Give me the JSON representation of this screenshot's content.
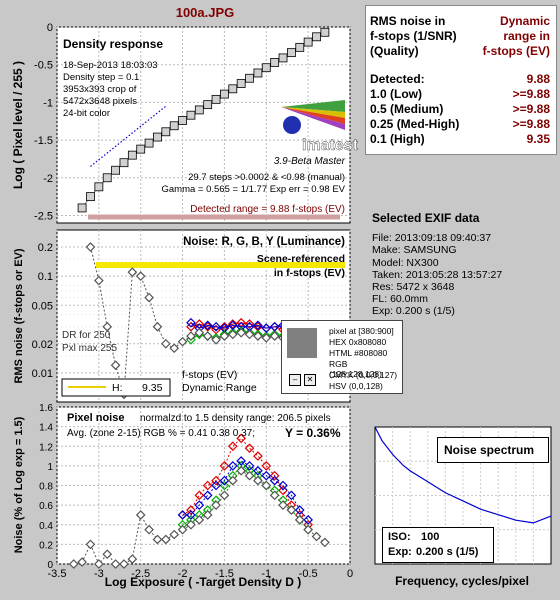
{
  "file_title": "100a.JPG",
  "density": {
    "title": "Density response",
    "info_lines": [
      "18-Sep-2013 18:03:03",
      "Density step = 0.1",
      "3953x393 crop of",
      "5472x3648 pixels",
      "24-bit color"
    ],
    "ylabel": "Log ( Pixel level / 255 )",
    "yticks": [
      "0",
      "-0.5",
      "-1",
      "-1.5",
      "-2",
      "-2.5"
    ],
    "logo": "imatest",
    "version": "3.9-Beta  Master",
    "stats_lines": [
      "29.7 steps >0.0002 & <0.98 (manual)",
      "Gamma = 0.565 = 1/1.77  Exp err = 0.98 EV"
    ],
    "detected_range": "Detected range = 9.88 f-stops (EV)"
  },
  "noise": {
    "title": "Noise: R, G, B, Y (Luminance)",
    "scene_label": "Scene-referenced",
    "scene_label2": "in f-stops (EV)",
    "ylabel": "RMS noise (f-stops or EV)",
    "yticks": [
      "0.2",
      "0.1",
      "0.05",
      "0.02",
      "0.01"
    ],
    "dr_labels": [
      "DR for 250",
      "Pxl max 255"
    ],
    "h_label": "H:",
    "h_value": "9.35",
    "dr_caption": [
      "f-stops (EV)",
      "Dynamic Range"
    ]
  },
  "pixel": {
    "title": "Pixel noise",
    "normalized": "normalzd to 1.5 density range: 206.5 pixels",
    "avg_label": "Avg. (zone 2-15) RGB % = 0.41  0.38  0.37;",
    "y_label": "Y = 0.36%",
    "ylabel": "Noise (% of Log exp = 1.5)",
    "yticks": [
      "1.6",
      "1.4",
      "1.2",
      "1",
      "0.8",
      "0.6",
      "0.4",
      "0.2",
      "0"
    ],
    "xticks": [
      "-3.5",
      "-3",
      "-2.5",
      "-2",
      "-1.5",
      "-1",
      "-0.5",
      "0"
    ],
    "xlabel": "Log Exposure ( -Target Density D )"
  },
  "spectrum": {
    "title": "Noise spectrum",
    "xlabel": "Frequency, cycles/pixel",
    "iso_label": "ISO:",
    "iso_value": "100",
    "exp_label": "Exp:",
    "exp_value": "0.200 s   (1/5)"
  },
  "rms_panel": {
    "header_left": [
      "RMS noise in",
      "f-stops (1/SNR)",
      "(Quality)"
    ],
    "header_right": [
      "Dynamic",
      "range in",
      "f-stops (EV)"
    ],
    "rows": [
      {
        "label": "Detected:",
        "value": "9.88"
      },
      {
        "label": "1.0  (Low)",
        "value": ">=9.88"
      },
      {
        "label": "0.5  (Medium)",
        "value": ">=9.88"
      },
      {
        "label": "0.25 (Med-High)",
        "value": ">=9.88"
      },
      {
        "label": "0.1  (High)",
        "value": "9.35"
      }
    ]
  },
  "exif": {
    "title": "Selected EXIF data",
    "lines": [
      "File:  2013:09:18 09:40:37",
      "Make:  SAMSUNG",
      "Model: NX300",
      "Taken:  2013:05:28 13:57:27",
      "Res:    5472 x 3648",
      "FL:  60.0mm",
      "Exp:   0.200 s   (1/5)"
    ]
  },
  "pixel_popup": {
    "lines": [
      "pixel at [380:900]",
      "HEX 0x808080",
      "HTML #808080",
      "RGB (128,128,128)",
      "CMYK (0,0,0,127)",
      "HSV (0,0,128)"
    ]
  },
  "colors": {
    "red": "#e00000",
    "green": "#00b000",
    "blue": "#0000d0",
    "grey": "#808080",
    "darkred": "#800000",
    "yellow": "#f5e800"
  },
  "chart_data": [
    {
      "type": "line",
      "title": "Density response",
      "xlabel": "Log Exposure ( -Target Density D )",
      "ylabel": "Log ( Pixel level / 255 )",
      "xlim": [
        -3.5,
        0
      ],
      "ylim": [
        -2.6,
        0
      ],
      "series": [
        {
          "values_x": [
            -3.2,
            -3.1,
            -3.0,
            -2.9,
            -2.8,
            -2.7,
            -2.6,
            -2.5,
            -2.4,
            -2.3,
            -2.2,
            -2.1,
            -2.0,
            -1.9,
            -1.8,
            -1.7,
            -1.6,
            -1.5,
            -1.4,
            -1.3,
            -1.2,
            -1.1,
            -1.0,
            -0.9,
            -0.8,
            -0.7,
            -0.6,
            -0.5,
            -0.4,
            -0.3
          ],
          "values_y": [
            -2.4,
            -2.25,
            -2.12,
            -2.0,
            -1.9,
            -1.8,
            -1.7,
            -1.62,
            -1.54,
            -1.46,
            -1.39,
            -1.31,
            -1.24,
            -1.17,
            -1.1,
            -1.03,
            -0.96,
            -0.89,
            -0.82,
            -0.75,
            -0.68,
            -0.61,
            -0.54,
            -0.47,
            -0.41,
            -0.34,
            -0.27,
            -0.2,
            -0.13,
            -0.07
          ]
        }
      ]
    },
    {
      "type": "line",
      "title": "Noise: R, G, B, Y (Luminance)",
      "ylabel": "RMS noise (f-stops or EV)",
      "xlim": [
        -3.5,
        0
      ],
      "ylim": [
        0.005,
        0.3
      ],
      "yscale": "log",
      "series": [
        {
          "name": "R",
          "values_x": [
            -1.9,
            -1.8,
            -1.7,
            -1.6,
            -1.5,
            -1.4,
            -1.3,
            -1.2,
            -1.1,
            -1.0,
            -0.9,
            -0.8,
            -0.7,
            -0.6,
            -0.5,
            -0.4
          ],
          "values_y": [
            0.03,
            0.032,
            0.03,
            0.028,
            0.03,
            0.032,
            0.033,
            0.032,
            0.03,
            0.029,
            0.03,
            0.028,
            0.029,
            0.027,
            0.026,
            0.025
          ]
        },
        {
          "name": "G",
          "values_x": [
            -1.9,
            -1.8,
            -1.7,
            -1.6,
            -1.5,
            -1.4,
            -1.3,
            -1.2,
            -1.1,
            -1.0,
            -0.9,
            -0.8,
            -0.7,
            -0.6,
            -0.5,
            -0.4
          ],
          "values_y": [
            0.022,
            0.025,
            0.024,
            0.023,
            0.025,
            0.026,
            0.027,
            0.026,
            0.025,
            0.024,
            0.025,
            0.024,
            0.025,
            0.023,
            0.022,
            0.021
          ]
        },
        {
          "name": "B",
          "values_x": [
            -1.9,
            -1.8,
            -1.7,
            -1.6,
            -1.5,
            -1.4,
            -1.3,
            -1.2,
            -1.1,
            -1.0,
            -0.9,
            -0.8,
            -0.7,
            -0.6,
            -0.5,
            -0.4
          ],
          "values_y": [
            0.033,
            0.029,
            0.031,
            0.03,
            0.029,
            0.031,
            0.03,
            0.03,
            0.031,
            0.029,
            0.03,
            0.031,
            0.029,
            0.03,
            0.028,
            0.026
          ]
        },
        {
          "name": "Y",
          "values_x": [
            -3.1,
            -3.0,
            -2.9,
            -2.8,
            -2.7,
            -2.6,
            -2.5,
            -2.4,
            -2.3,
            -2.2,
            -2.1,
            -2.0,
            -1.9,
            -1.8,
            -1.7,
            -1.6,
            -1.5,
            -1.4,
            -1.3,
            -1.2,
            -1.1,
            -1.0,
            -0.9,
            -0.8,
            -0.7,
            -0.6,
            -0.5,
            -0.4,
            -0.3,
            -0.2
          ],
          "values_y": [
            0.2,
            0.09,
            0.03,
            0.012,
            0.006,
            0.11,
            0.1,
            0.06,
            0.03,
            0.02,
            0.018,
            0.021,
            0.024,
            0.026,
            0.024,
            0.022,
            0.024,
            0.025,
            0.026,
            0.025,
            0.024,
            0.023,
            0.024,
            0.023,
            0.022,
            0.021,
            0.02,
            0.019,
            0.018,
            0.017
          ]
        }
      ]
    },
    {
      "type": "line",
      "title": "Pixel noise",
      "xlabel": "Log Exposure ( -Target Density D )",
      "ylabel": "Noise (% of Log exp = 1.5)",
      "xlim": [
        -3.5,
        0
      ],
      "ylim": [
        0,
        1.6
      ],
      "series": [
        {
          "name": "R",
          "values_x": [
            -2.0,
            -1.9,
            -1.8,
            -1.7,
            -1.6,
            -1.5,
            -1.4,
            -1.3,
            -1.2,
            -1.1,
            -1.0,
            -0.9,
            -0.8,
            -0.7,
            -0.6,
            -0.5
          ],
          "values_y": [
            0.5,
            0.55,
            0.7,
            0.8,
            0.85,
            1.0,
            1.2,
            1.28,
            1.18,
            1.1,
            1.0,
            0.9,
            0.75,
            0.6,
            0.5,
            0.4
          ]
        },
        {
          "name": "G",
          "values_x": [
            -2.0,
            -1.9,
            -1.8,
            -1.7,
            -1.6,
            -1.5,
            -1.4,
            -1.3,
            -1.2,
            -1.1,
            -1.0,
            -0.9,
            -0.8,
            -0.7,
            -0.6,
            -0.5
          ],
          "values_y": [
            0.4,
            0.45,
            0.5,
            0.55,
            0.65,
            0.8,
            0.9,
            1.0,
            0.95,
            0.9,
            0.8,
            0.75,
            0.65,
            0.55,
            0.45,
            0.35
          ]
        },
        {
          "name": "B",
          "values_x": [
            -2.0,
            -1.9,
            -1.8,
            -1.7,
            -1.6,
            -1.5,
            -1.4,
            -1.3,
            -1.2,
            -1.1,
            -1.0,
            -0.9,
            -0.8,
            -0.7,
            -0.6,
            -0.5
          ],
          "values_y": [
            0.5,
            0.5,
            0.6,
            0.7,
            0.8,
            0.85,
            1.0,
            1.05,
            1.0,
            0.95,
            0.9,
            0.85,
            0.8,
            0.7,
            0.55,
            0.45
          ]
        },
        {
          "name": "Y",
          "values_x": [
            -3.3,
            -3.2,
            -3.1,
            -3.0,
            -2.9,
            -2.8,
            -2.7,
            -2.6,
            -2.5,
            -2.4,
            -2.3,
            -2.2,
            -2.1,
            -2.0,
            -1.9,
            -1.8,
            -1.7,
            -1.6,
            -1.5,
            -1.4,
            -1.3,
            -1.2,
            -1.1,
            -1.0,
            -0.9,
            -0.8,
            -0.7,
            -0.6,
            -0.5,
            -0.4,
            -0.3
          ],
          "values_y": [
            0,
            0.02,
            0.2,
            0.0,
            0.1,
            0.0,
            0.0,
            0.05,
            0.5,
            0.35,
            0.25,
            0.25,
            0.3,
            0.35,
            0.4,
            0.45,
            0.5,
            0.6,
            0.7,
            0.85,
            0.95,
            0.9,
            0.85,
            0.8,
            0.7,
            0.6,
            0.55,
            0.45,
            0.35,
            0.28,
            0.22
          ]
        }
      ]
    },
    {
      "type": "line",
      "title": "Noise spectrum",
      "xlabel": "Frequency, cycles/pixel",
      "xlim": [
        0,
        0.5
      ],
      "ylim": [
        0,
        1
      ],
      "series": [
        {
          "values_x": [
            0,
            0.02,
            0.05,
            0.08,
            0.1,
            0.15,
            0.2,
            0.25,
            0.3,
            0.35,
            0.4,
            0.45,
            0.5
          ],
          "values_y": [
            1.0,
            0.9,
            0.8,
            0.72,
            0.68,
            0.6,
            0.52,
            0.46,
            0.4,
            0.36,
            0.32,
            0.3,
            0.35
          ]
        }
      ]
    }
  ]
}
